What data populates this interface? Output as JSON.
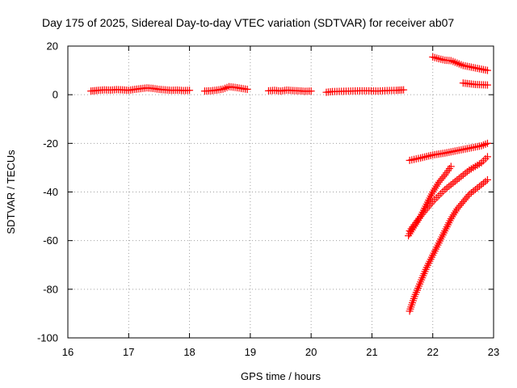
{
  "chart_data": {
    "type": "scatter",
    "title": "Day 175 of 2025, Sidereal Day-to-day VTEC variation (SDTVAR) for receiver ab07",
    "xlabel": "GPS time / hours",
    "ylabel": "SDTVAR / TECUs",
    "xlim": [
      16,
      23
    ],
    "ylim": [
      -100,
      20
    ],
    "x_ticks": [
      "16",
      "17",
      "18",
      "19",
      "20",
      "21",
      "22",
      "23"
    ],
    "y_ticks": [
      "20",
      "0",
      "-20",
      "-40",
      "-60",
      "-80",
      "-100"
    ],
    "grid": true,
    "marker": "plus",
    "color": "#ff0000",
    "series": [
      {
        "x": [
          16.38,
          16.5,
          16.6,
          16.7,
          16.8,
          16.9,
          17.0,
          17.1,
          17.2,
          17.3,
          17.4,
          17.5,
          17.6,
          17.7,
          17.8,
          17.9,
          18.0
        ],
        "y": [
          1.5,
          1.8,
          2.0,
          1.9,
          2.1,
          2.0,
          1.8,
          2.2,
          2.5,
          2.8,
          2.6,
          2.2,
          2.0,
          1.8,
          1.9,
          1.7,
          1.8
        ]
      },
      {
        "x": [
          18.25,
          18.35,
          18.45,
          18.55,
          18.65,
          18.75,
          18.85,
          18.95
        ],
        "y": [
          1.5,
          1.6,
          1.9,
          2.3,
          3.3,
          3.0,
          2.6,
          2.2
        ]
      },
      {
        "x": [
          19.3,
          19.4,
          19.5,
          19.6,
          19.7,
          19.8,
          19.9,
          20.0
        ],
        "y": [
          1.6,
          1.8,
          1.5,
          1.9,
          1.7,
          1.6,
          1.4,
          1.5
        ]
      },
      {
        "x": [
          20.25,
          20.35,
          20.5,
          20.65,
          20.8,
          20.95,
          21.1,
          21.25,
          21.4,
          21.52
        ],
        "y": [
          1.0,
          1.3,
          1.4,
          1.5,
          1.6,
          1.6,
          1.5,
          1.7,
          1.8,
          2.0
        ]
      },
      {
        "x": [
          22.0,
          22.1,
          22.2,
          22.3,
          22.4,
          22.5,
          22.6,
          22.7,
          22.8,
          22.9
        ],
        "y": [
          15.5,
          14.8,
          14.2,
          14.0,
          13.0,
          12.0,
          11.5,
          11.0,
          10.5,
          10.0
        ]
      },
      {
        "x": [
          22.5,
          22.6,
          22.7,
          22.8,
          22.9
        ],
        "y": [
          4.8,
          4.5,
          4.2,
          4.1,
          4.0
        ]
      },
      {
        "x": [
          21.62,
          21.8,
          22.0,
          22.2,
          22.4,
          22.6,
          22.8,
          22.9
        ],
        "y": [
          -27,
          -26,
          -24.8,
          -24,
          -23,
          -22,
          -21,
          -20
        ]
      },
      {
        "x": [
          21.6,
          21.7,
          21.8,
          21.9,
          22.0,
          22.1,
          22.2,
          22.3
        ],
        "y": [
          -58,
          -54,
          -50,
          -45,
          -40,
          -36,
          -33,
          -29.5
        ]
      },
      {
        "x": [
          21.62,
          21.8,
          22.0,
          22.2,
          22.4,
          22.6,
          22.8,
          22.9
        ],
        "y": [
          -56,
          -50,
          -44,
          -39,
          -35,
          -31,
          -28,
          -25.5
        ]
      },
      {
        "x": [
          21.62,
          21.7,
          21.8,
          21.9,
          22.0,
          22.1,
          22.2,
          22.3,
          22.4,
          22.5,
          22.6,
          22.7,
          22.8,
          22.9
        ],
        "y": [
          -89,
          -83,
          -77,
          -71,
          -66,
          -61,
          -56,
          -51,
          -47,
          -44,
          -41,
          -39,
          -37,
          -35
        ]
      }
    ]
  }
}
